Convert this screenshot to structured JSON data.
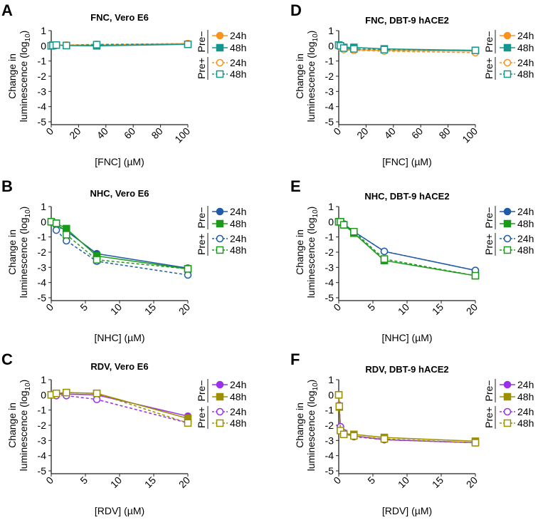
{
  "legend": {
    "groups": [
      "Pre−",
      "Pre+"
    ],
    "labels": [
      "24h",
      "48h",
      "24h",
      "48h"
    ]
  },
  "ylabel": [
    "Change in",
    "luminescence (log",
    "10",
    ")"
  ],
  "chart_data": [
    {
      "panel": "A",
      "type": "line",
      "title": "FNC, Vero E6",
      "xlabel": "[FNC] (µM)",
      "xlim": [
        0,
        100
      ],
      "xticks": [
        0,
        20,
        40,
        60,
        80,
        100
      ],
      "ylim": [
        -5,
        1
      ],
      "yticks": [
        1,
        0,
        -1,
        -2,
        -3,
        -4,
        -5
      ],
      "colors": [
        "#f7941d",
        "#15968c"
      ],
      "x": [
        0,
        1.23,
        3.7,
        11.1,
        33.3,
        100
      ],
      "series": [
        {
          "name": "Pre− 24h",
          "values": [
            0.05,
            0.05,
            0.05,
            0.05,
            0.05,
            0.15
          ]
        },
        {
          "name": "Pre− 48h",
          "values": [
            0,
            0.05,
            0.05,
            0.02,
            0,
            0.1
          ]
        },
        {
          "name": "Pre+ 24h",
          "values": [
            0.02,
            0.05,
            0.05,
            0.05,
            0.1,
            0.15
          ]
        },
        {
          "name": "Pre+ 48h",
          "values": [
            0,
            0.02,
            0.05,
            0.02,
            0.08,
            0.1
          ]
        }
      ]
    },
    {
      "panel": "B",
      "type": "line",
      "title": "NHC, Vero E6",
      "xlabel": "[NHC] (µM)",
      "xlim": [
        0,
        20
      ],
      "xticks": [
        0,
        5,
        10,
        15,
        20
      ],
      "ylim": [
        -5,
        1
      ],
      "yticks": [
        1,
        0,
        -1,
        -2,
        -3,
        -4,
        -5
      ],
      "colors": [
        "#1f5ba6",
        "#1a9a1a"
      ],
      "x": [
        0,
        0.74,
        2.22,
        6.67,
        20
      ],
      "series": [
        {
          "name": "Pre− 24h",
          "values": [
            0,
            -0.2,
            -0.6,
            -2.1,
            -3.05
          ]
        },
        {
          "name": "Pre− 48h",
          "values": [
            0,
            -0.1,
            -0.45,
            -2.25,
            -3.1
          ]
        },
        {
          "name": "Pre+ 24h",
          "values": [
            0,
            -0.55,
            -1.25,
            -2.6,
            -3.5
          ]
        },
        {
          "name": "Pre+ 48h",
          "values": [
            0,
            -0.1,
            -0.85,
            -2.5,
            -3.1
          ]
        }
      ]
    },
    {
      "panel": "C",
      "type": "line",
      "title": "RDV, Vero E6",
      "xlabel": "[RDV] (µM)",
      "xlim": [
        0,
        20
      ],
      "xticks": [
        0,
        5,
        10,
        15,
        20
      ],
      "ylim": [
        -5,
        1
      ],
      "yticks": [
        1,
        0,
        -1,
        -2,
        -3,
        -4,
        -5
      ],
      "colors": [
        "#9b30e8",
        "#9a9000"
      ],
      "x": [
        0,
        0.74,
        2.22,
        6.67,
        20
      ],
      "series": [
        {
          "name": "Pre− 24h",
          "values": [
            0,
            0.05,
            0.05,
            0,
            -1.4
          ]
        },
        {
          "name": "Pre− 48h",
          "values": [
            0,
            0.1,
            0.15,
            0.1,
            -1.55
          ]
        },
        {
          "name": "Pre+ 24h",
          "values": [
            0,
            -0.05,
            -0.05,
            -0.3,
            -1.85
          ]
        },
        {
          "name": "Pre+ 48h",
          "values": [
            0,
            0.1,
            0.15,
            0.1,
            -1.85
          ]
        }
      ]
    },
    {
      "panel": "D",
      "type": "line",
      "title": "FNC, DBT-9 hACE2",
      "xlabel": "[FNC] (µM)",
      "xlim": [
        0,
        100
      ],
      "xticks": [
        0,
        20,
        40,
        60,
        80,
        100
      ],
      "ylim": [
        -5,
        1
      ],
      "yticks": [
        1,
        0,
        -1,
        -2,
        -3,
        -4,
        -5
      ],
      "colors": [
        "#f7941d",
        "#15968c"
      ],
      "x": [
        0,
        1.23,
        3.7,
        11.1,
        33.3,
        100
      ],
      "series": [
        {
          "name": "Pre− 24h",
          "values": [
            0,
            -0.05,
            -0.2,
            -0.25,
            -0.3,
            -0.35
          ]
        },
        {
          "name": "Pre− 48h",
          "values": [
            0.05,
            0,
            -0.1,
            -0.1,
            -0.2,
            -0.3
          ]
        },
        {
          "name": "Pre+ 24h",
          "values": [
            0,
            -0.1,
            -0.25,
            -0.3,
            -0.35,
            -0.45
          ]
        },
        {
          "name": "Pre+ 48h",
          "values": [
            0.05,
            0,
            -0.15,
            -0.2,
            -0.25,
            -0.3
          ]
        }
      ]
    },
    {
      "panel": "E",
      "type": "line",
      "title": "NHC, DBT-9 hACE2",
      "xlabel": "[NHC] (µM)",
      "xlim": [
        0,
        20
      ],
      "xticks": [
        0,
        5,
        10,
        15,
        20
      ],
      "ylim": [
        -5,
        1
      ],
      "yticks": [
        1,
        0,
        -1,
        -2,
        -3,
        -4,
        -5
      ],
      "colors": [
        "#1f5ba6",
        "#1a9a1a"
      ],
      "x": [
        0,
        0.25,
        0.74,
        2.22,
        6.67,
        20
      ],
      "series": [
        {
          "name": "Pre− 24h",
          "values": [
            0,
            0,
            -0.15,
            -0.65,
            -1.95,
            -3.2
          ]
        },
        {
          "name": "Pre− 48h",
          "values": [
            0,
            0,
            -0.2,
            -0.75,
            -2.55,
            -3.55
          ]
        },
        {
          "name": "Pre+ 24h",
          "values": [
            0,
            0,
            -0.15,
            -0.65,
            -1.95,
            -3.2
          ]
        },
        {
          "name": "Pre+ 48h",
          "values": [
            0,
            0,
            -0.2,
            -0.65,
            -2.45,
            -3.55
          ]
        }
      ]
    },
    {
      "panel": "F",
      "type": "line",
      "title": "RDV, DBT-9 hACE2",
      "xlabel": "[RDV] (µM)",
      "xlim": [
        0,
        20
      ],
      "xticks": [
        0,
        5,
        10,
        15,
        20
      ],
      "ylim": [
        -5,
        1
      ],
      "yticks": [
        1,
        0,
        -1,
        -2,
        -3,
        -4,
        -5
      ],
      "colors": [
        "#9b30e8",
        "#9a9000"
      ],
      "x": [
        0,
        0.08,
        0.25,
        0.74,
        2.22,
        6.67,
        20
      ],
      "series": [
        {
          "name": "Pre− 24h",
          "values": [
            0,
            -0.7,
            -2.1,
            -2.5,
            -2.7,
            -2.95,
            -3.15
          ]
        },
        {
          "name": "Pre− 48h",
          "values": [
            0,
            -0.8,
            -2.3,
            -2.55,
            -2.6,
            -2.8,
            -3.05
          ]
        },
        {
          "name": "Pre+ 24h",
          "values": [
            0,
            -0.7,
            -2.1,
            -2.5,
            -2.75,
            -2.95,
            -3.15
          ]
        },
        {
          "name": "Pre+ 48h",
          "values": [
            0,
            -0.75,
            -2.35,
            -2.6,
            -2.7,
            -2.9,
            -3.15
          ]
        }
      ]
    }
  ]
}
